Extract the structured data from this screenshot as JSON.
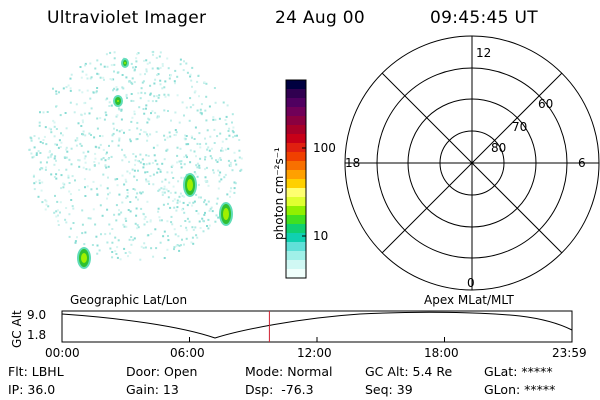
{
  "header": {
    "title": "Ultraviolet Imager",
    "date": "24 Aug 00",
    "time": "09:45:45 UT"
  },
  "colorbar": {
    "unit_label": "photon cm⁻²s⁻¹",
    "ticks": [
      "100",
      "10"
    ],
    "colors": [
      "#000040",
      "#300050",
      "#500060",
      "#700058",
      "#8a0040",
      "#a80028",
      "#c80018",
      "#e02010",
      "#f04000",
      "#f87000",
      "#ffa000",
      "#ffd000",
      "#ffff70",
      "#e0ff30",
      "#90f000",
      "#40e020",
      "#10d070",
      "#10d0b0",
      "#60e0d8",
      "#a0f0e8",
      "#d0f8f4",
      "#f0fffc"
    ]
  },
  "polar_grid": {
    "top_label": "12",
    "bottom_label": "0",
    "left_label": "18",
    "right_label": "6",
    "lat_labels": [
      "60",
      "70",
      "80"
    ]
  },
  "timeline": {
    "y_axis_label": "GC Alt",
    "y_ticks": [
      "9.0",
      "1.8"
    ],
    "left_caption": "Geographic Lat/Lon",
    "right_caption": "Apex MLat/MLT",
    "x_ticks": [
      "00:00",
      "06:00",
      "12:00",
      "18:00",
      "23:59"
    ],
    "current_time_fraction": 0.4067
  },
  "info": {
    "filter": "Flt: LBHL",
    "ip": "IP: 36.0",
    "door": "Door: Open",
    "gain": "Gain: 13",
    "mode": "Mode: Normal",
    "dsp": "Dsp:  -76.3",
    "gc_alt": "GC Alt: 5.4 Re",
    "seq": "Seq: 39",
    "glat": "GLat: *****",
    "glon": "GLon: *****"
  }
}
